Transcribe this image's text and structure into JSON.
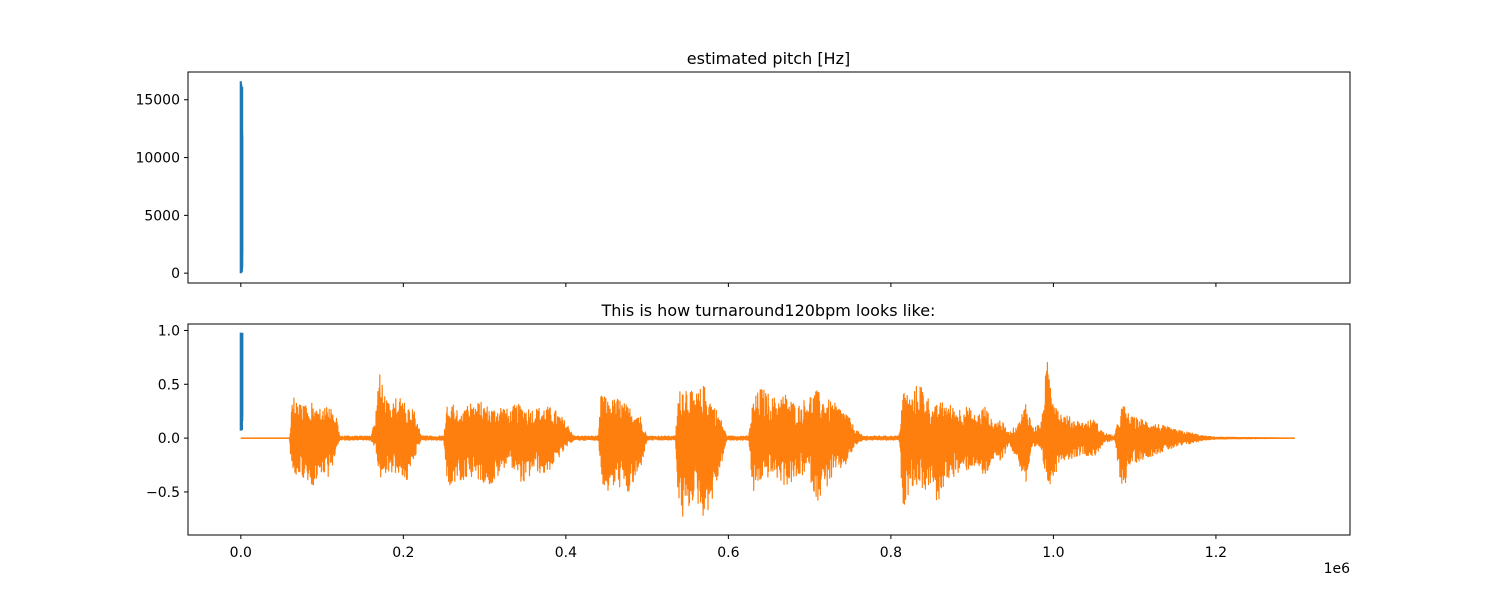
{
  "figure": {
    "offset_label": "1e6"
  },
  "colors": {
    "series_blue": "#1f77b4",
    "series_orange": "#ff7f0e",
    "axes": "#000000",
    "background": "#ffffff"
  },
  "chart_data": [
    {
      "type": "line",
      "title": "estimated pitch [Hz]",
      "xlabel": "",
      "ylabel": "",
      "xlim": [
        -65000,
        1365000
      ],
      "ylim": [
        -850,
        17400
      ],
      "x_ticks": [
        0,
        200000,
        400000,
        600000,
        800000,
        1000000,
        1200000
      ],
      "x_tick_labels_shown": false,
      "y_ticks": [
        0,
        5000,
        10000,
        15000
      ],
      "y_tick_labels": [
        "0",
        "5000",
        "10000",
        "15000"
      ],
      "grid": false,
      "series": [
        {
          "color": "#1f77b4",
          "x_range": [
            0,
            1800
          ],
          "y_range": [
            0,
            16600
          ],
          "description_shape": "vertical burst near x=0"
        }
      ]
    },
    {
      "type": "line",
      "title": "This is how turnaround120bpm looks like:",
      "xlabel": "",
      "ylabel": "",
      "xlim": [
        -65000,
        1365000
      ],
      "ylim": [
        -0.9,
        1.06
      ],
      "x_ticks": [
        0,
        200000,
        400000,
        600000,
        800000,
        1000000,
        1200000
      ],
      "x_tick_labels": [
        "0.0",
        "0.2",
        "0.4",
        "0.6",
        "0.8",
        "1.0",
        "1.2"
      ],
      "y_ticks": [
        -0.5,
        0.0,
        0.5,
        1.0
      ],
      "y_tick_labels": [
        "−0.5",
        "0.0",
        "0.5",
        "1.0"
      ],
      "grid": false,
      "series": [
        {
          "color": "#1f77b4",
          "x_range": [
            0,
            1800
          ],
          "y_range": [
            0.07,
            0.98
          ]
        },
        {
          "color": "#ff7f0e",
          "x_range": [
            0,
            1297000
          ],
          "envelope_points": [
            [
              0,
              0.0,
              0.0
            ],
            [
              60000,
              0.0,
              0.0
            ],
            [
              62000,
              0.3,
              -0.25
            ],
            [
              66000,
              0.44,
              -0.4
            ],
            [
              75000,
              0.3,
              -0.35
            ],
            [
              90000,
              0.33,
              -0.45
            ],
            [
              100000,
              0.28,
              -0.3
            ],
            [
              110000,
              0.32,
              -0.38
            ],
            [
              118000,
              0.18,
              -0.1
            ],
            [
              122000,
              0.02,
              -0.02
            ],
            [
              160000,
              0.02,
              -0.02
            ],
            [
              166000,
              0.25,
              -0.1
            ],
            [
              170000,
              0.7,
              -0.42
            ],
            [
              180000,
              0.35,
              -0.3
            ],
            [
              195000,
              0.38,
              -0.35
            ],
            [
              205000,
              0.33,
              -0.4
            ],
            [
              213000,
              0.28,
              -0.2
            ],
            [
              222000,
              0.02,
              -0.02
            ],
            [
              250000,
              0.02,
              -0.02
            ],
            [
              254000,
              0.35,
              -0.5
            ],
            [
              265000,
              0.3,
              -0.42
            ],
            [
              280000,
              0.32,
              -0.38
            ],
            [
              295000,
              0.34,
              -0.4
            ],
            [
              310000,
              0.28,
              -0.45
            ],
            [
              322000,
              0.32,
              -0.3
            ],
            [
              330000,
              0.25,
              -0.2
            ],
            [
              338000,
              0.32,
              -0.35
            ],
            [
              350000,
              0.3,
              -0.45
            ],
            [
              360000,
              0.28,
              -0.3
            ],
            [
              375000,
              0.3,
              -0.35
            ],
            [
              385000,
              0.28,
              -0.25
            ],
            [
              395000,
              0.2,
              -0.15
            ],
            [
              405000,
              0.1,
              -0.05
            ],
            [
              410000,
              0.02,
              -0.02
            ],
            [
              440000,
              0.02,
              -0.02
            ],
            [
              444000,
              0.5,
              -0.4
            ],
            [
              450000,
              0.35,
              -0.52
            ],
            [
              465000,
              0.38,
              -0.45
            ],
            [
              476000,
              0.3,
              -0.55
            ],
            [
              490000,
              0.25,
              -0.35
            ],
            [
              500000,
              0.02,
              -0.02
            ],
            [
              535000,
              0.02,
              -0.02
            ],
            [
              538000,
              0.4,
              -0.6
            ],
            [
              545000,
              0.55,
              -0.8
            ],
            [
              558000,
              0.4,
              -0.55
            ],
            [
              570000,
              0.5,
              -0.75
            ],
            [
              580000,
              0.35,
              -0.6
            ],
            [
              590000,
              0.2,
              -0.3
            ],
            [
              598000,
              0.02,
              -0.02
            ],
            [
              625000,
              0.02,
              -0.02
            ],
            [
              630000,
              0.35,
              -0.55
            ],
            [
              640000,
              0.48,
              -0.4
            ],
            [
              655000,
              0.38,
              -0.35
            ],
            [
              670000,
              0.42,
              -0.45
            ],
            [
              685000,
              0.3,
              -0.4
            ],
            [
              698000,
              0.4,
              -0.3
            ],
            [
              708000,
              0.45,
              -0.6
            ],
            [
              718000,
              0.38,
              -0.5
            ],
            [
              730000,
              0.33,
              -0.35
            ],
            [
              745000,
              0.25,
              -0.25
            ],
            [
              755000,
              0.1,
              -0.08
            ],
            [
              765000,
              0.02,
              -0.02
            ],
            [
              810000,
              0.02,
              -0.02
            ],
            [
              815000,
              0.48,
              -0.65
            ],
            [
              825000,
              0.38,
              -0.45
            ],
            [
              835000,
              0.55,
              -0.45
            ],
            [
              845000,
              0.4,
              -0.5
            ],
            [
              852000,
              0.28,
              -0.4
            ],
            [
              858000,
              0.32,
              -0.75
            ],
            [
              866000,
              0.35,
              -0.4
            ],
            [
              880000,
              0.28,
              -0.35
            ],
            [
              895000,
              0.3,
              -0.3
            ],
            [
              905000,
              0.2,
              -0.25
            ],
            [
              915000,
              0.32,
              -0.4
            ],
            [
              925000,
              0.15,
              -0.2
            ],
            [
              935000,
              0.18,
              -0.25
            ],
            [
              945000,
              0.05,
              -0.05
            ],
            [
              958000,
              0.15,
              -0.25
            ],
            [
              966000,
              0.35,
              -0.45
            ],
            [
              975000,
              0.1,
              -0.1
            ],
            [
              985000,
              0.15,
              -0.1
            ],
            [
              992000,
              0.73,
              -0.45
            ],
            [
              1000000,
              0.5,
              -0.4
            ],
            [
              1008000,
              0.25,
              -0.2
            ],
            [
              1020000,
              0.2,
              -0.2
            ],
            [
              1035000,
              0.15,
              -0.15
            ],
            [
              1050000,
              0.18,
              -0.18
            ],
            [
              1062000,
              0.05,
              -0.05
            ],
            [
              1075000,
              0.02,
              -0.02
            ],
            [
              1085000,
              0.33,
              -0.52
            ],
            [
              1095000,
              0.2,
              -0.25
            ],
            [
              1110000,
              0.18,
              -0.2
            ],
            [
              1130000,
              0.13,
              -0.14
            ],
            [
              1150000,
              0.08,
              -0.09
            ],
            [
              1170000,
              0.05,
              -0.05
            ],
            [
              1185000,
              0.02,
              -0.02
            ],
            [
              1200000,
              0.01,
              -0.01
            ],
            [
              1297000,
              0.0,
              0.0
            ]
          ]
        }
      ]
    }
  ]
}
